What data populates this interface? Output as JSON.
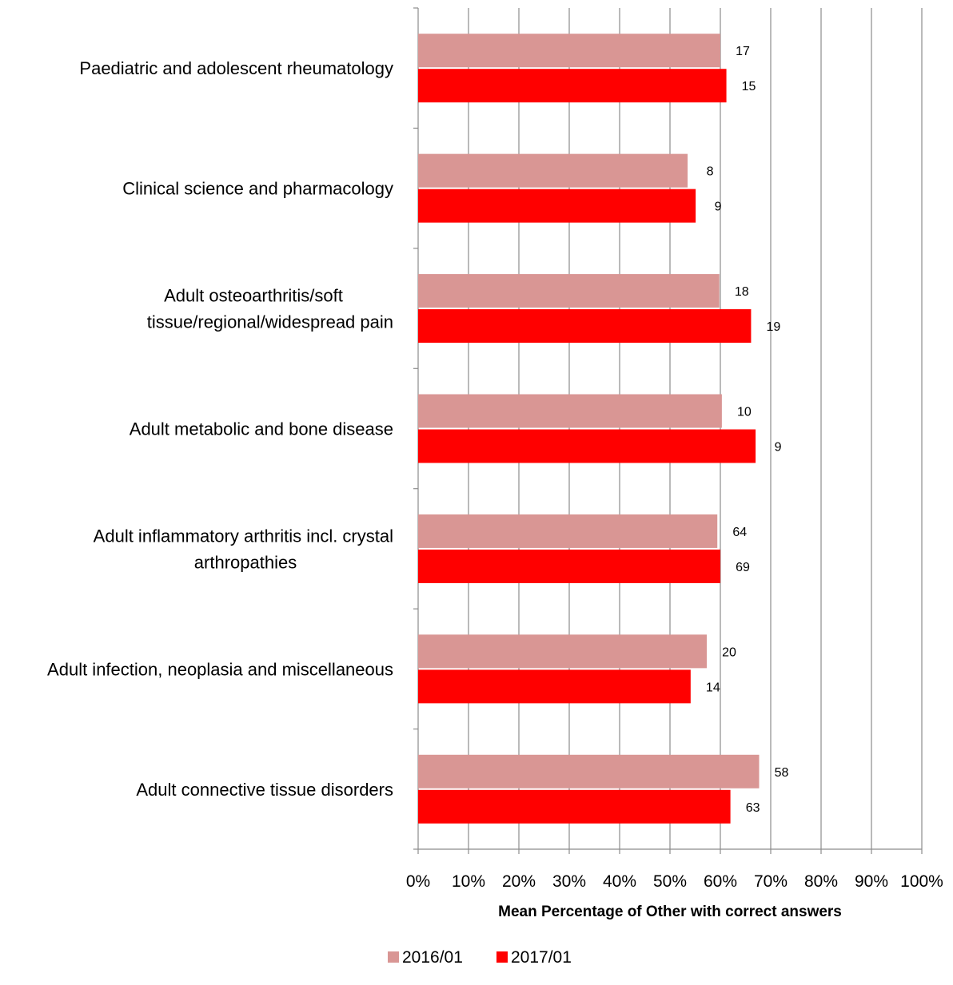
{
  "chart_data": {
    "type": "bar",
    "orientation": "horizontal",
    "title": "",
    "xlabel": "Mean Percentage of Other with correct answers",
    "ylabel": "",
    "xlim": [
      0,
      1
    ],
    "xticks": [
      0,
      0.1,
      0.2,
      0.3,
      0.4,
      0.5,
      0.6,
      0.7,
      0.8,
      0.9,
      1.0
    ],
    "xtick_labels": [
      "0%",
      "10%",
      "20%",
      "30%",
      "40%",
      "50%",
      "60%",
      "70%",
      "80%",
      "90%",
      "100%"
    ],
    "grid": "vertical major gridlines on",
    "legend_position": "bottom",
    "categories": [
      "Paediatric and adolescent rheumatology",
      "Clinical science and pharmacology",
      "Adult osteoarthritis/soft tissue/regional/widespread pain",
      "Adult metabolic and bone disease",
      "Adult inflammatory arthritis incl. crystal arthropathies",
      "Adult infection, neoplasia and miscellaneous",
      "Adult connective tissue disorders"
    ],
    "category_label_lines": [
      [
        "Paediatric and adolescent rheumatology"
      ],
      [
        "Clinical science and pharmacology"
      ],
      [
        "Adult osteoarthritis/soft",
        "tissue/regional/widespread pain"
      ],
      [
        "Adult metabolic and bone disease"
      ],
      [
        "Adult inflammatory arthritis incl. crystal",
        "arthropathies"
      ],
      [
        "Adult infection, neoplasia and miscellaneous"
      ],
      [
        "Adult connective tissue disorders"
      ]
    ],
    "series": [
      {
        "name": "2016/01",
        "color": "#d99694",
        "values": [
          0.6,
          0.535,
          0.598,
          0.603,
          0.594,
          0.573,
          0.677
        ],
        "data_labels": [
          "17",
          "8",
          "18",
          "10",
          "64",
          "20",
          "58"
        ]
      },
      {
        "name": "2017/01",
        "color": "#ff0000",
        "values": [
          0.612,
          0.551,
          0.661,
          0.67,
          0.6,
          0.541,
          0.62
        ],
        "data_labels": [
          "15",
          "9",
          "19",
          "9",
          "69",
          "14",
          "63"
        ]
      }
    ]
  }
}
